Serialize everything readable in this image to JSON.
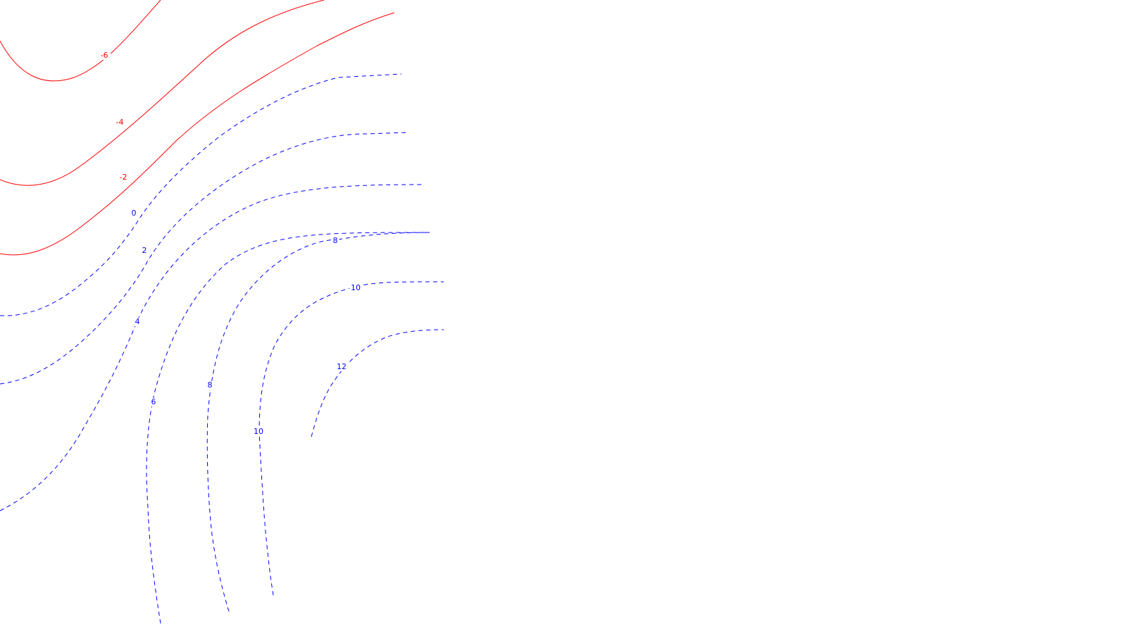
{
  "chart_data": {
    "type": "contour",
    "title": "",
    "xlabel": "",
    "ylabel": "",
    "grid": false,
    "legend": "none",
    "line_styles": {
      "negative": "solid",
      "positive": "dashed"
    },
    "colors": {
      "negative": "#ff0000",
      "positive": "#0000ff"
    },
    "contours": [
      {
        "level": -6,
        "label": "-6"
      },
      {
        "level": -4,
        "label": "-4"
      },
      {
        "level": -2,
        "label": "-2"
      },
      {
        "level": 0,
        "label": "0"
      },
      {
        "level": 2,
        "label": "2"
      },
      {
        "level": 4,
        "label": "4"
      },
      {
        "level": 6,
        "label": "6"
      },
      {
        "level": 8,
        "label": "8"
      },
      {
        "level": 8,
        "label": "8"
      },
      {
        "level": 10,
        "label": "10"
      },
      {
        "level": 10,
        "label": "10"
      },
      {
        "level": 12,
        "label": "12"
      }
    ]
  }
}
